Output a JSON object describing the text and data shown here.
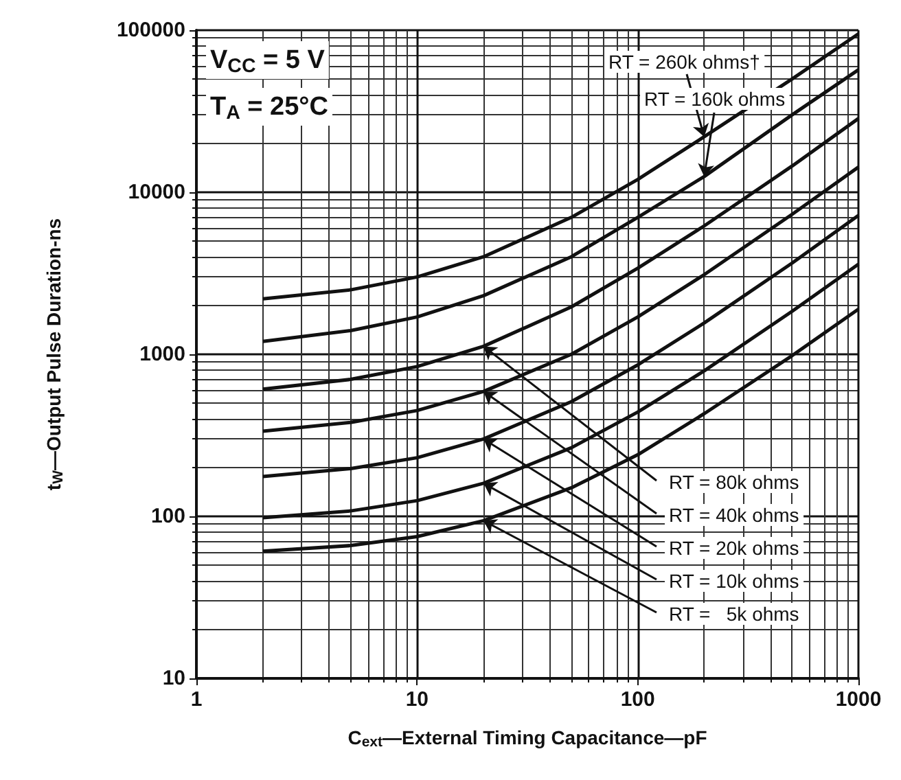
{
  "chart_data": {
    "type": "line",
    "xlabel": "C$_{ext}$—External Timing Capacitance—pF",
    "ylabel": "t$_{W}$—Output Pulse Duration-ns",
    "x": [
      2,
      5,
      10,
      20,
      50,
      100,
      200,
      500,
      1000
    ],
    "series": [
      {
        "name": "RT = 260k ohms†",
        "color": "#111111",
        "values": [
          2200,
          2500,
          3000,
          4000,
          7000,
          12000,
          22000,
          50000,
          95000
        ]
      },
      {
        "name": "RT = 160k ohms",
        "color": "#111111",
        "values": [
          1200,
          1400,
          1700,
          2300,
          4000,
          7000,
          12500,
          30000,
          57000
        ]
      },
      {
        "name": "RT = 80k ohms",
        "color": "#111111",
        "values": [
          610,
          700,
          840,
          1120,
          1960,
          3400,
          6200,
          14500,
          28500
        ]
      },
      {
        "name": "RT = 40k ohms",
        "color": "#111111",
        "values": [
          335,
          380,
          450,
          590,
          1000,
          1700,
          3100,
          7300,
          14300
        ]
      },
      {
        "name": "RT = 20k ohms",
        "color": "#111111",
        "values": [
          176,
          197,
          230,
          300,
          510,
          860,
          1560,
          3650,
          7200
        ]
      },
      {
        "name": "RT = 10k ohms",
        "color": "#111111",
        "values": [
          98,
          108,
          125,
          160,
          265,
          440,
          790,
          1840,
          3600
        ]
      },
      {
        "name": "RT =   5k ohms",
        "color": "#111111",
        "values": [
          61,
          66,
          75,
          94,
          150,
          240,
          430,
          980,
          1900
        ]
      }
    ],
    "xlim": [
      1,
      1000
    ],
    "ylim": [
      10,
      100000
    ],
    "xticks": [
      1,
      10,
      100,
      1000
    ],
    "yticks": [
      10,
      100,
      1000,
      10000,
      100000
    ],
    "log": "xy",
    "grid": true,
    "annotations": [
      "V$_{CC}$ = 5 V",
      "T$_{A}$ = 25°C"
    ]
  }
}
